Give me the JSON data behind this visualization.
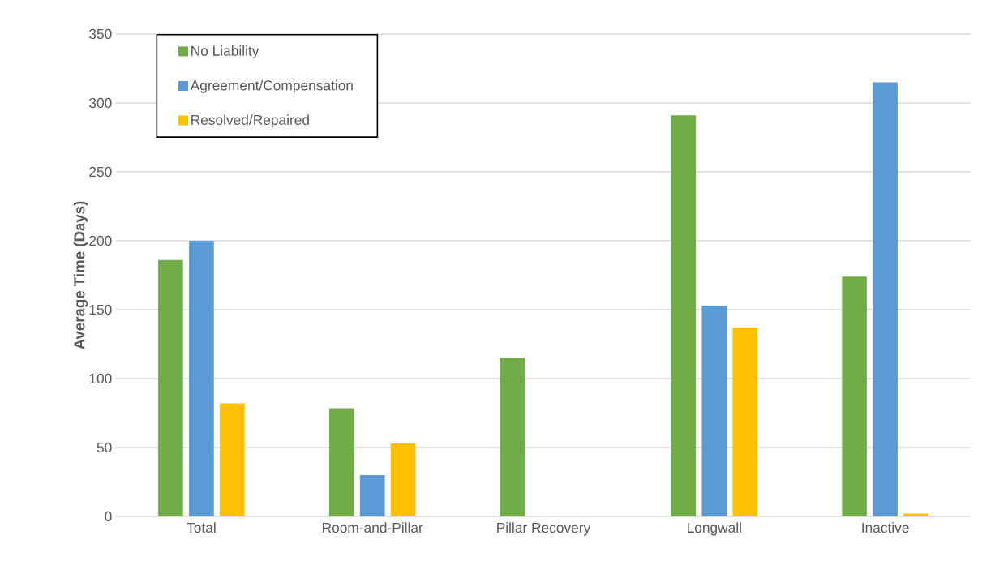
{
  "chart_data": {
    "type": "bar",
    "ylabel": "Average Time (Days)",
    "categories": [
      "Total",
      "Room-and-Pillar",
      "Pillar Recovery",
      "Longwall",
      "Inactive"
    ],
    "series": [
      {
        "name": "No Liability",
        "color": "#70ad47",
        "values": [
          186,
          78.5,
          115,
          291,
          174
        ]
      },
      {
        "name": "Agreement/Compensation",
        "color": "#5b9bd5",
        "values": [
          200,
          30,
          null,
          153,
          315
        ]
      },
      {
        "name": "Resolved/Repaired",
        "color": "#ffc000",
        "values": [
          82,
          53,
          null,
          137,
          2
        ]
      }
    ],
    "ylim": [
      0,
      350
    ],
    "yticks": [
      0,
      50,
      100,
      150,
      200,
      250,
      300,
      350
    ],
    "grid": "y",
    "legend": "top left"
  }
}
